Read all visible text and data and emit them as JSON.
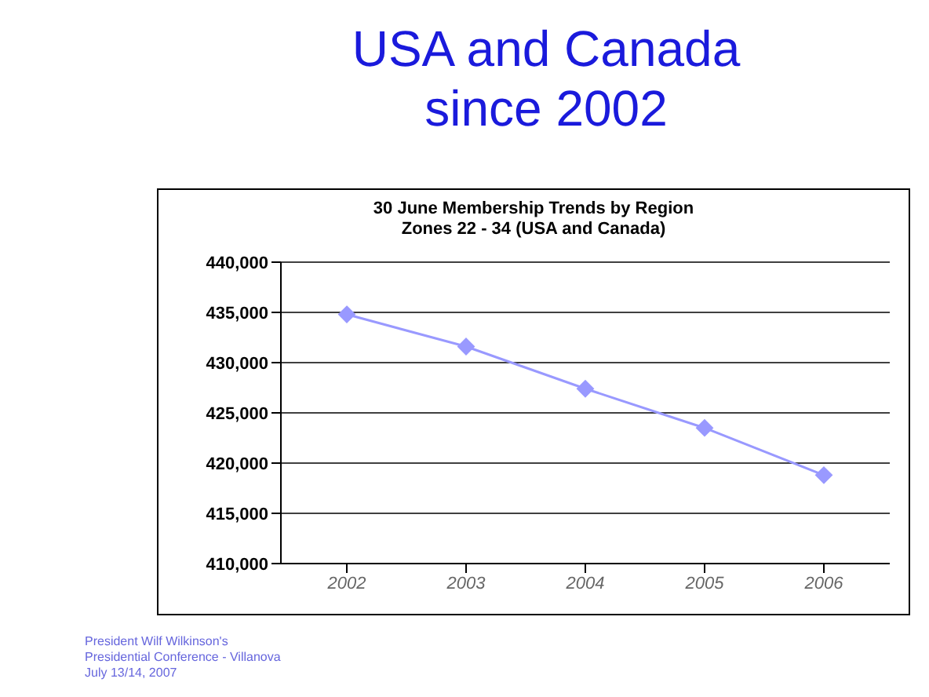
{
  "chart_data": {
    "type": "line",
    "title": "USA and Canada since 2002",
    "subtitle": "30 June Membership Trends by Region\nZones 22 - 34 (USA and Canada)",
    "categories": [
      "2002",
      "2003",
      "2004",
      "2005",
      "2006"
    ],
    "series": [
      {
        "color": "#9999ff",
        "values": [
          434800,
          431600,
          427400,
          423500,
          418800
        ]
      }
    ],
    "ylim": [
      410000,
      440000
    ],
    "yticks": [
      {
        "value": 410000,
        "label": "410,000"
      },
      {
        "value": 415000,
        "label": "415,000"
      },
      {
        "value": 420000,
        "label": "420,000"
      },
      {
        "value": 425000,
        "label": "425,000"
      },
      {
        "value": 430000,
        "label": "430,000"
      },
      {
        "value": 435000,
        "label": "435,000"
      },
      {
        "value": 440000,
        "label": "440,000"
      }
    ],
    "grid": "y",
    "marker": "diamond",
    "line_style": "solid",
    "legend": false,
    "annotations": [
      "President Wilf Wilkinson's",
      "Presidential Conference - Villanova",
      "July 13/14, 2007"
    ]
  }
}
